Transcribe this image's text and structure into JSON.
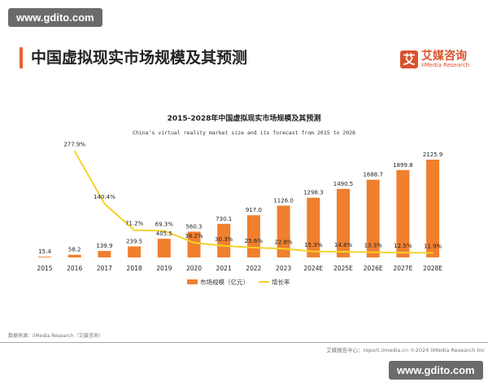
{
  "watermark": "www.gdito.com",
  "page_title": "中国虚拟现实市场规模及其预测",
  "logo": {
    "mark": "艾",
    "cn": "艾媒咨询",
    "en": "iiMedia Research"
  },
  "source": "数据来源：iiMedia Research（艾媒咨询）",
  "footer": "艾媒报告中心：report.iimedia.cn   ©2024   iiMedia Research  Inc",
  "chart_data": {
    "type": "bar+line",
    "title": "2015-2028年中国虚拟现实市场规模及其预测",
    "subtitle": "China's virtual reality market size and its forecast from 2015 to 2028",
    "categories": [
      "2015",
      "2016",
      "2017",
      "2018",
      "2019",
      "2020",
      "2021",
      "2022",
      "2023",
      "2024E",
      "2025E",
      "2026E",
      "2027E",
      "2028E"
    ],
    "series": [
      {
        "name": "市场规模（亿元）",
        "type": "bar",
        "color": "#f07f2e",
        "values": [
          15.4,
          58.2,
          139.9,
          239.5,
          405.5,
          560.3,
          730.1,
          917.0,
          1126.0,
          1298.3,
          1490.5,
          1688.7,
          1899.8,
          2125.9
        ],
        "labels": [
          "15.4",
          "58.2",
          "139.9",
          "239.5",
          "405.5",
          "560.3",
          "730.1",
          "917.0",
          "1126.0",
          "1298.3",
          "1490.5",
          "1688.7",
          "1899.8",
          "2125.9"
        ]
      },
      {
        "name": "增长率",
        "type": "line",
        "color": "#f5d22c",
        "values": [
          null,
          277.9,
          140.4,
          71.2,
          69.3,
          38.2,
          30.3,
          25.6,
          22.8,
          15.3,
          14.8,
          13.3,
          12.5,
          11.9
        ],
        "labels": [
          "",
          "277.9%",
          "140.4%",
          "71.2%",
          "69.3%",
          "38.2%",
          "30.3%",
          "25.6%",
          "22.8%",
          "15.3%",
          "14.8%",
          "13.3%",
          "12.5%",
          "11.9%"
        ]
      }
    ],
    "legend": "bottom"
  }
}
